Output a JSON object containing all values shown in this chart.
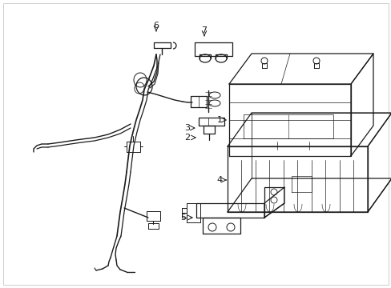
{
  "background_color": "#ffffff",
  "line_color": "#1a1a1a",
  "figure_width": 4.89,
  "figure_height": 3.6,
  "dpi": 100
}
